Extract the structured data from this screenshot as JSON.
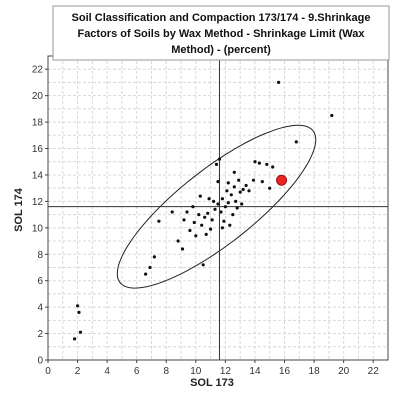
{
  "chart_data": {
    "type": "scatter",
    "title_lines": [
      "Soil Classification and Compaction 173/174 - 9.Shrinkage",
      "Factors of Soils by Wax Method - Shrinkage Limit (Wax",
      "Method) - (percent)"
    ],
    "xlabel": "SOL 173",
    "ylabel": "SOL 174",
    "xlim": [
      0,
      23
    ],
    "ylim": [
      0,
      23
    ],
    "xticks": [
      0,
      2,
      4,
      6,
      8,
      10,
      12,
      14,
      16,
      18,
      20,
      22
    ],
    "yticks": [
      0,
      2,
      4,
      6,
      8,
      10,
      12,
      14,
      16,
      18,
      20,
      22
    ],
    "grid": true,
    "reference_lines": {
      "x": 11.6,
      "y": 11.6
    },
    "colors": {
      "points": "#111111",
      "highlight": "#ee2222",
      "ellipse": "#222222",
      "grid": "#d8d8d8"
    },
    "highlight": {
      "x": 15.8,
      "y": 13.6
    },
    "ellipse": {
      "cx": 11.4,
      "cy": 11.6,
      "rx": 8.7,
      "ry": 2.7,
      "angle_deg": 42
    },
    "points": [
      [
        1.8,
        1.6
      ],
      [
        2.2,
        2.1
      ],
      [
        2.0,
        4.1
      ],
      [
        2.1,
        3.6
      ],
      [
        6.6,
        6.5
      ],
      [
        6.9,
        7.0
      ],
      [
        7.2,
        7.8
      ],
      [
        7.5,
        10.5
      ],
      [
        8.4,
        11.2
      ],
      [
        8.8,
        9.0
      ],
      [
        9.1,
        8.4
      ],
      [
        9.2,
        10.6
      ],
      [
        9.4,
        11.2
      ],
      [
        9.6,
        9.8
      ],
      [
        9.9,
        10.4
      ],
      [
        10.0,
        9.4
      ],
      [
        10.2,
        11.0
      ],
      [
        10.3,
        12.4
      ],
      [
        10.4,
        10.2
      ],
      [
        10.5,
        7.2
      ],
      [
        10.6,
        10.8
      ],
      [
        10.8,
        11.1
      ],
      [
        11.0,
        9.9
      ],
      [
        11.1,
        10.6
      ],
      [
        11.2,
        12.0
      ],
      [
        11.3,
        11.4
      ],
      [
        11.4,
        14.8
      ],
      [
        11.5,
        13.5
      ],
      [
        11.6,
        15.2
      ],
      [
        11.7,
        11.2
      ],
      [
        11.8,
        12.2
      ],
      [
        11.9,
        10.5
      ],
      [
        12.0,
        11.6
      ],
      [
        12.1,
        12.8
      ],
      [
        12.2,
        11.9
      ],
      [
        12.3,
        10.2
      ],
      [
        12.4,
        12.5
      ],
      [
        12.5,
        11.0
      ],
      [
        12.6,
        13.1
      ],
      [
        12.7,
        12.0
      ],
      [
        12.8,
        11.5
      ],
      [
        12.9,
        13.6
      ],
      [
        13.0,
        12.7
      ],
      [
        13.2,
        12.9
      ],
      [
        13.4,
        13.2
      ],
      [
        13.6,
        12.8
      ],
      [
        13.9,
        13.6
      ],
      [
        14.0,
        15.0
      ],
      [
        14.3,
        14.9
      ],
      [
        14.5,
        13.5
      ],
      [
        14.8,
        14.8
      ],
      [
        15.0,
        13.0
      ],
      [
        15.2,
        14.6
      ],
      [
        15.6,
        21.0
      ],
      [
        16.8,
        16.5
      ],
      [
        19.2,
        18.5
      ],
      [
        10.9,
        12.2
      ],
      [
        11.5,
        11.8
      ],
      [
        12.2,
        13.4
      ],
      [
        13.1,
        11.8
      ],
      [
        10.7,
        9.5
      ],
      [
        11.8,
        10.0
      ],
      [
        9.8,
        11.6
      ],
      [
        12.6,
        14.2
      ]
    ]
  }
}
